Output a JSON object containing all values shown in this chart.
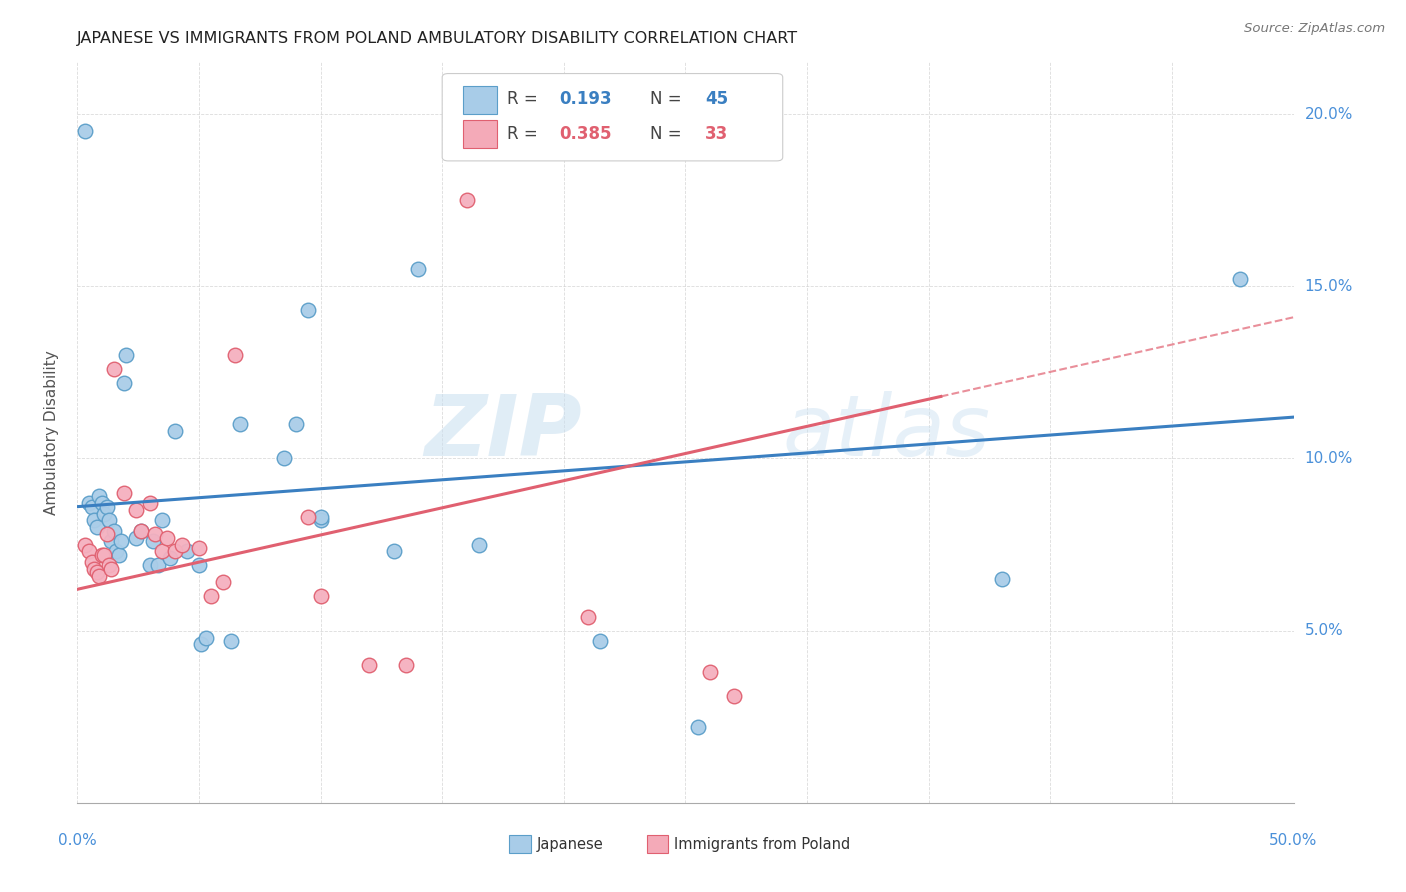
{
  "title": "JAPANESE VS IMMIGRANTS FROM POLAND AMBULATORY DISABILITY CORRELATION CHART",
  "source": "Source: ZipAtlas.com",
  "ylabel": "Ambulatory Disability",
  "yticks": [
    0.05,
    0.1,
    0.15,
    0.2
  ],
  "ytick_labels": [
    "5.0%",
    "10.0%",
    "15.0%",
    "20.0%"
  ],
  "xlim": [
    0.0,
    0.5
  ],
  "ylim": [
    0.0,
    0.215
  ],
  "legend_color1": "#a8cce8",
  "legend_color2": "#f4aab8",
  "japan_border_color": "#5b9ec9",
  "poland_border_color": "#e06070",
  "japanese_color": "#aacde8",
  "poland_color": "#f5b0bf",
  "watermark_zip": "ZIP",
  "watermark_atlas": "atlas",
  "japanese_points": [
    [
      0.003,
      0.195
    ],
    [
      0.005,
      0.087
    ],
    [
      0.006,
      0.086
    ],
    [
      0.007,
      0.082
    ],
    [
      0.008,
      0.08
    ],
    [
      0.009,
      0.089
    ],
    [
      0.01,
      0.087
    ],
    [
      0.011,
      0.084
    ],
    [
      0.012,
      0.086
    ],
    [
      0.013,
      0.082
    ],
    [
      0.014,
      0.076
    ],
    [
      0.015,
      0.079
    ],
    [
      0.016,
      0.073
    ],
    [
      0.017,
      0.072
    ],
    [
      0.018,
      0.076
    ],
    [
      0.019,
      0.122
    ],
    [
      0.02,
      0.13
    ],
    [
      0.024,
      0.077
    ],
    [
      0.026,
      0.079
    ],
    [
      0.03,
      0.069
    ],
    [
      0.031,
      0.076
    ],
    [
      0.033,
      0.069
    ],
    [
      0.035,
      0.082
    ],
    [
      0.038,
      0.071
    ],
    [
      0.04,
      0.108
    ],
    [
      0.045,
      0.073
    ],
    [
      0.05,
      0.069
    ],
    [
      0.051,
      0.046
    ],
    [
      0.053,
      0.048
    ],
    [
      0.063,
      0.047
    ],
    [
      0.067,
      0.11
    ],
    [
      0.085,
      0.1
    ],
    [
      0.09,
      0.11
    ],
    [
      0.095,
      0.143
    ],
    [
      0.1,
      0.082
    ],
    [
      0.1,
      0.083
    ],
    [
      0.13,
      0.073
    ],
    [
      0.14,
      0.155
    ],
    [
      0.165,
      0.075
    ],
    [
      0.215,
      0.047
    ],
    [
      0.255,
      0.022
    ],
    [
      0.38,
      0.065
    ],
    [
      0.478,
      0.152
    ]
  ],
  "poland_points": [
    [
      0.003,
      0.075
    ],
    [
      0.005,
      0.073
    ],
    [
      0.006,
      0.07
    ],
    [
      0.007,
      0.068
    ],
    [
      0.008,
      0.067
    ],
    [
      0.009,
      0.066
    ],
    [
      0.01,
      0.072
    ],
    [
      0.011,
      0.072
    ],
    [
      0.012,
      0.078
    ],
    [
      0.013,
      0.069
    ],
    [
      0.014,
      0.068
    ],
    [
      0.015,
      0.126
    ],
    [
      0.019,
      0.09
    ],
    [
      0.024,
      0.085
    ],
    [
      0.026,
      0.079
    ],
    [
      0.03,
      0.087
    ],
    [
      0.032,
      0.078
    ],
    [
      0.035,
      0.073
    ],
    [
      0.037,
      0.077
    ],
    [
      0.04,
      0.073
    ],
    [
      0.043,
      0.075
    ],
    [
      0.05,
      0.074
    ],
    [
      0.055,
      0.06
    ],
    [
      0.06,
      0.064
    ],
    [
      0.065,
      0.13
    ],
    [
      0.095,
      0.083
    ],
    [
      0.1,
      0.06
    ],
    [
      0.12,
      0.04
    ],
    [
      0.135,
      0.04
    ],
    [
      0.16,
      0.175
    ],
    [
      0.21,
      0.054
    ],
    [
      0.26,
      0.038
    ],
    [
      0.27,
      0.031
    ]
  ],
  "blue_line_x": [
    0.0,
    0.5
  ],
  "blue_line_y": [
    0.086,
    0.112
  ],
  "pink_line_x": [
    0.0,
    0.355
  ],
  "pink_line_y": [
    0.062,
    0.118
  ],
  "dashed_line_x": [
    0.355,
    0.5
  ],
  "dashed_line_y": [
    0.118,
    0.141
  ]
}
